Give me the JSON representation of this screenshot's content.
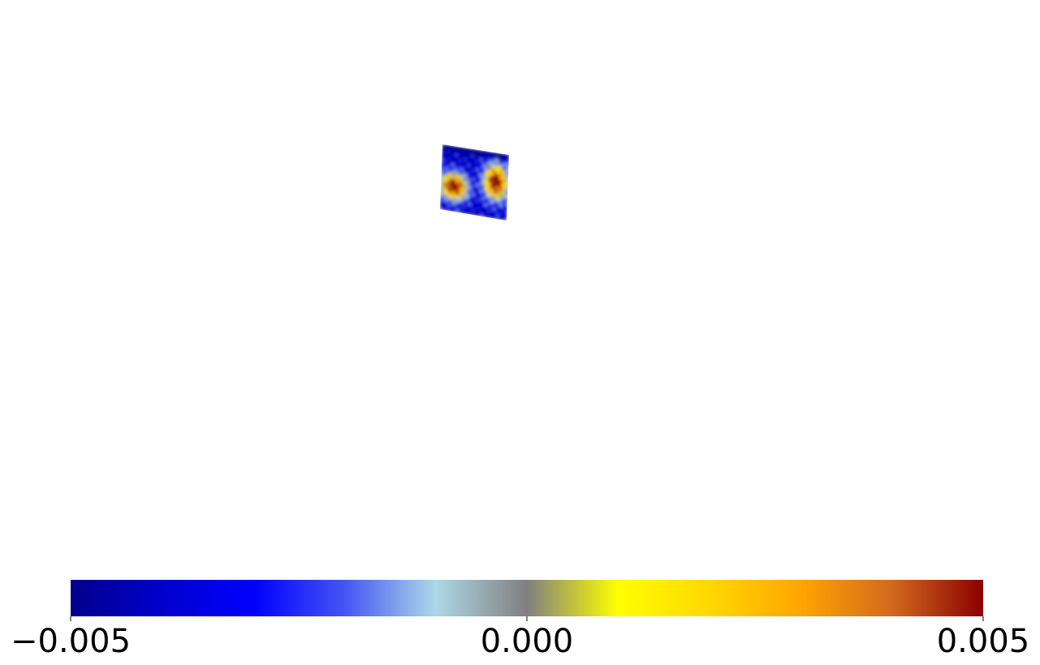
{
  "chart_data": {
    "type": "heatmap",
    "title": "",
    "xlabel": "",
    "ylabel": "",
    "grid": false,
    "axes_visible": false,
    "colorbar": {
      "orientation": "horizontal",
      "placement": "bottom",
      "vmin": -0.005,
      "vmax": 0.005,
      "ticks": [
        -0.005,
        0.0,
        0.005
      ],
      "tick_labels": [
        "−0.005",
        "0.000",
        "0.005"
      ],
      "colormap": [
        {
          "value": -0.005,
          "color": "#00008b"
        },
        {
          "value": -0.004,
          "color": "#0000cd"
        },
        {
          "value": -0.003,
          "color": "#0000ff"
        },
        {
          "value": -0.002,
          "color": "#4455f4"
        },
        {
          "value": -0.001,
          "color": "#add8e6"
        },
        {
          "value": 0.0,
          "color": "#808080"
        },
        {
          "value": 0.001,
          "color": "#ffff00"
        },
        {
          "value": 0.002,
          "color": "#ffd700"
        },
        {
          "value": 0.003,
          "color": "#ffa500"
        },
        {
          "value": 0.004,
          "color": "#d2691e"
        },
        {
          "value": 0.005,
          "color": "#8b0000"
        }
      ]
    },
    "field_summary": "Small sheared patch: negative values (blue) along top and bottom edges, two positive (yellow/red) blobs at left-middle and right-middle"
  }
}
